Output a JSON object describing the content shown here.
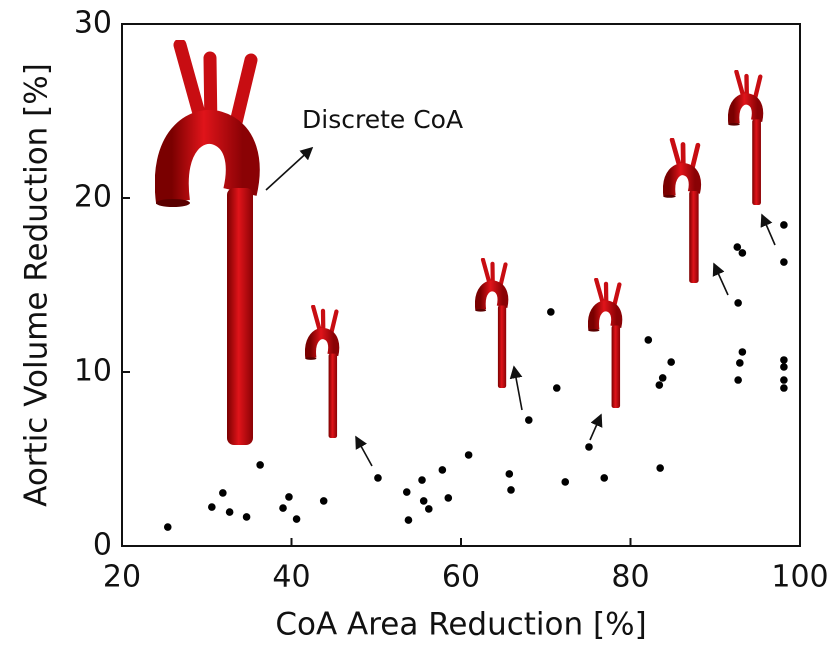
{
  "chart_data": {
    "type": "scatter",
    "x_label": "CoA Area Reduction [%]",
    "y_label": "Aortic Volume Reduction [%]",
    "annotation": "Discrete CoA",
    "color": "#000000",
    "x": [
      25.4,
      30.6,
      31.9,
      32.7,
      34.7,
      36.3,
      39.0,
      39.7,
      40.6,
      43.8,
      50.2,
      53.6,
      53.8,
      55.4,
      55.6,
      56.2,
      57.8,
      58.5,
      60.9,
      65.7,
      65.9,
      68.0,
      70.6,
      71.3,
      72.3,
      75.1,
      76.9,
      82.1,
      83.4,
      83.8,
      83.5,
      84.8,
      92.6,
      93.2,
      92.7,
      92.9,
      93.2,
      92.7,
      98.1,
      98.1,
      98.1,
      98.1,
      98.1,
      98.1
    ],
    "values": [
      1.09,
      2.24,
      3.05,
      1.95,
      1.67,
      4.66,
      2.18,
      2.82,
      1.55,
      2.59,
      3.91,
      3.1,
      1.49,
      3.79,
      2.59,
      2.13,
      4.37,
      2.76,
      5.23,
      4.14,
      3.22,
      7.24,
      13.45,
      9.08,
      3.68,
      5.69,
      3.91,
      11.84,
      9.25,
      9.66,
      4.48,
      10.57,
      17.18,
      16.84,
      13.97,
      10.52,
      11.15,
      9.54,
      18.45,
      16.32,
      10.69,
      10.29,
      9.54,
      9.08
    ],
    "xlim": [
      20,
      100
    ],
    "xticks": [
      20,
      40,
      60,
      80,
      100
    ],
    "ylim": [
      0,
      30
    ],
    "yticks": [
      0,
      10,
      20,
      30
    ]
  }
}
